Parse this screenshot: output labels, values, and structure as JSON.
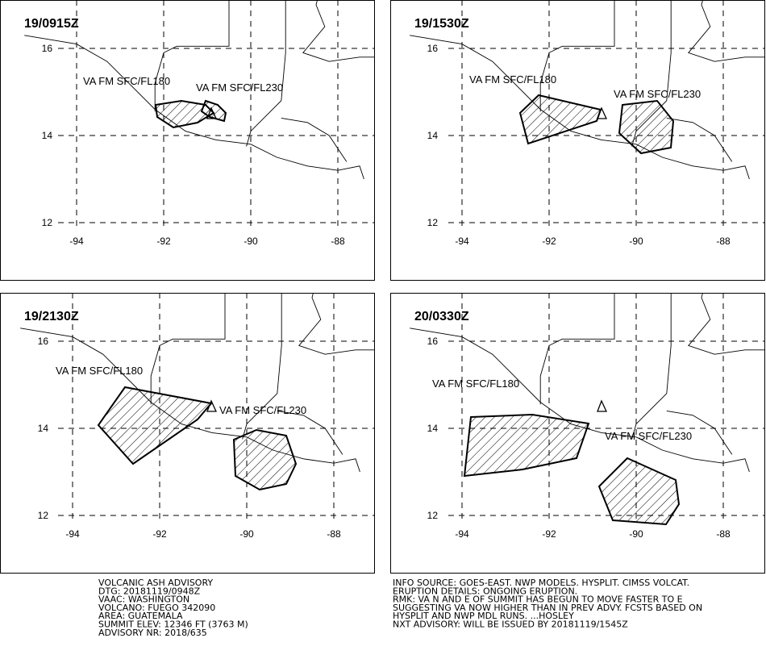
{
  "panels": [
    {
      "time": "19/0915Z",
      "labels": [
        "VA FM SFC/FL180",
        "VA FM SFC/FL230"
      ]
    },
    {
      "time": "19/1530Z",
      "labels": [
        "VA FM SFC/FL180",
        "VA FM SFC/FL230"
      ]
    },
    {
      "time": "19/2130Z",
      "labels": [
        "VA FM SFC/FL180",
        "VA FM SFC/FL230"
      ]
    },
    {
      "time": "20/0330Z",
      "labels": [
        "VA FM SFC/FL180",
        "VA FM SFC/FL230"
      ]
    }
  ],
  "lon_ticks": [
    -94,
    -92,
    -90,
    -88
  ],
  "lat_ticks": [
    16,
    14,
    12
  ],
  "advisory_left": [
    "VOLCANIC ASH ADVISORY",
    "DTG: 20181119/0948Z",
    "VAAC: WASHINGTON",
    "VOLCANO: FUEGO 342090",
    "AREA: GUATEMALA",
    "SUMMIT ELEV: 12346 FT (3763 M)",
    "ADVISORY NR: 2018/635"
  ],
  "advisory_right": [
    "INFO SOURCE: GOES-EAST. NWP MODELS. HYSPLIT. CIMSS VOLCAT.",
    "ERUPTION DETAILS: ONGOING ERUPTION.",
    "RMK: VA N AND E OF SUMMIT HAS BEGUN TO MOVE FASTER TO E",
    "SUGGESTING VA NOW HIGHER THAN IN PREV ADVY. FCSTS BASED ON",
    "HYSPLIT AND NWP MDL RUNS. ...HOSLEY",
    "NXT ADVISORY: WILL BE ISSUED BY 20181119/1545Z"
  ]
}
